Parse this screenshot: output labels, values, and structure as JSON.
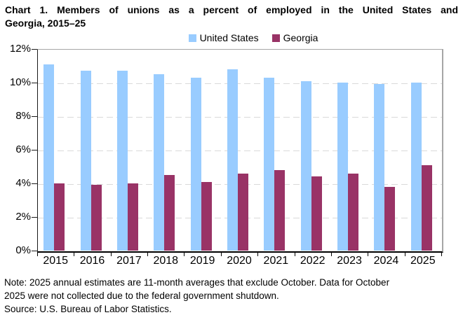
{
  "title_lines": [
    "Chart 1. Members of unions as a percent of employed in the United States and",
    "Georgia, 2015–25"
  ],
  "chart_data": {
    "type": "bar",
    "title": "Chart 1. Members of unions as a percent of employed in the United States and Georgia, 2015–25",
    "categories": [
      "2015",
      "2016",
      "2017",
      "2018",
      "2019",
      "2020",
      "2021",
      "2022",
      "2023",
      "2024",
      "2025"
    ],
    "series": [
      {
        "name": "United States",
        "color": "#99CCFF",
        "values": [
          11.1,
          10.7,
          10.7,
          10.5,
          10.3,
          10.8,
          10.3,
          10.1,
          10.0,
          9.9,
          10.0
        ]
      },
      {
        "name": "Georgia",
        "color": "#993366",
        "values": [
          4.0,
          3.9,
          4.0,
          4.5,
          4.1,
          4.6,
          4.8,
          4.4,
          4.6,
          3.8,
          5.1
        ]
      }
    ],
    "xlabel": "",
    "ylabel": "",
    "ylim": [
      0,
      12
    ],
    "ytick_step": 2,
    "ytick_suffix": "%",
    "grid": "horizontal-dashed",
    "legend_position": "top-center"
  },
  "footnote": {
    "note_lines": [
      "Note: 2025 annual estimates are 11-month averages that exclude October. Data for October",
      "2025 were not collected due to the federal government shutdown."
    ],
    "source": "Source: U.S. Bureau of Labor Statistics."
  },
  "colors": {
    "gridline": "#D9D9D9",
    "plot_border": "#A6A6A6",
    "axis": "#000000",
    "text": "#000000"
  }
}
